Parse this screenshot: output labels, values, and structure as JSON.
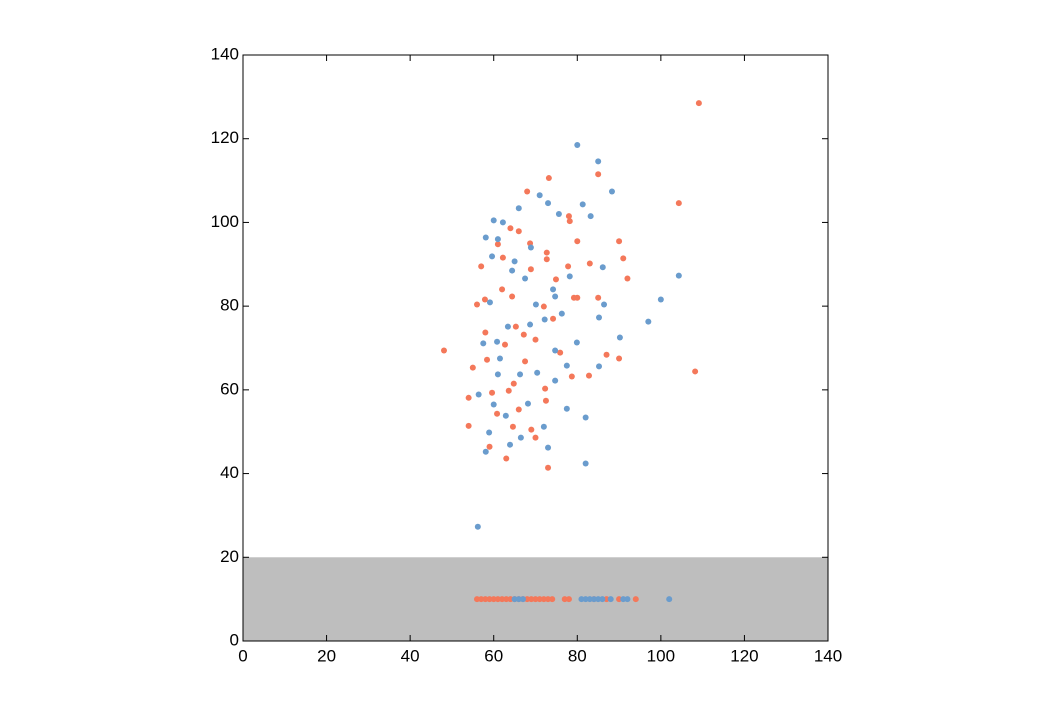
{
  "chart_data": {
    "type": "scatter",
    "xlim": [
      0,
      140
    ],
    "ylim": [
      0,
      140
    ],
    "xticks": [
      0,
      20,
      40,
      60,
      80,
      100,
      120,
      140
    ],
    "yticks": [
      0,
      20,
      40,
      60,
      80,
      100,
      120,
      140
    ],
    "band": [
      0,
      20
    ],
    "band_color": "#bebebe",
    "series": [
      {
        "color": "#f4785a",
        "x": [
          109.1,
          104.3,
          108.2,
          48.1,
          73.2,
          68,
          85,
          78,
          80,
          90,
          91,
          92,
          72.7,
          72.7,
          80,
          85,
          87,
          90,
          72.5,
          73,
          70,
          63,
          59,
          54,
          54,
          55,
          56,
          57,
          58,
          61,
          64,
          66,
          68.7,
          62,
          59.6,
          63.6,
          66,
          72.3,
          75.9,
          78.7,
          82.8,
          69,
          60.8,
          64.8,
          70,
          74.2,
          67.2,
          62.7,
          58.4,
          77.8,
          74.9,
          79.2,
          68.9,
          62.2,
          64.4,
          57.9,
          65.3,
          72,
          67.5,
          64.6,
          83,
          78.2,
          56,
          57,
          58,
          59,
          60,
          61,
          62,
          63,
          64,
          65,
          66,
          67,
          68,
          69,
          70,
          71,
          72,
          73,
          74,
          77,
          78,
          84,
          87,
          90,
          94
        ],
        "values": [
          128.5,
          104.6,
          64.4,
          69.4,
          110.6,
          107.4,
          111.5,
          101.5,
          95.5,
          95.5,
          91.4,
          86.6,
          92.8,
          91.2,
          82,
          82,
          68.4,
          67.5,
          57.4,
          41.4,
          48.6,
          43.6,
          46.4,
          58.1,
          51.4,
          65.3,
          80.4,
          89.5,
          73.7,
          94.8,
          98.6,
          97.9,
          95,
          84,
          59.3,
          59.8,
          55.3,
          60.3,
          68.9,
          63.2,
          63.4,
          50.5,
          54.3,
          61.5,
          72,
          77,
          73.2,
          70.8,
          67.2,
          89.5,
          86.4,
          82,
          88.8,
          91.6,
          82.3,
          81.6,
          75.1,
          79.9,
          66.8,
          51.2,
          90.2,
          100.3,
          10,
          10,
          10,
          10,
          10,
          10,
          10,
          10,
          10,
          10,
          10,
          10,
          10,
          10,
          10,
          10,
          10,
          10,
          10,
          10,
          10,
          10,
          10,
          10,
          10
        ]
      },
      {
        "color": "#6a9ccd",
        "x": [
          80,
          85,
          88.3,
          81.3,
          83.2,
          75.6,
          73,
          71,
          66,
          60,
          62.2,
          58.1,
          61,
          104.3,
          100,
          97,
          86.1,
          86.4,
          85.2,
          90.2,
          85.2,
          82,
          82,
          73,
          56.2,
          58.1,
          58.9,
          56.4,
          57.5,
          60.8,
          59.6,
          64.4,
          67.5,
          74.2,
          74.7,
          78.2,
          70.1,
          72.2,
          68.7,
          63.4,
          61.5,
          61,
          66.3,
          70.4,
          74.7,
          77.5,
          79.9,
          68.2,
          63.9,
          66.5,
          72,
          60,
          62.9,
          74.7,
          65,
          68.9,
          59.1,
          76.3,
          77.5,
          65,
          66,
          67,
          81,
          82,
          83,
          84,
          85,
          86,
          88,
          91,
          92,
          102
        ],
        "values": [
          118.5,
          114.6,
          107.4,
          104.3,
          101.5,
          102,
          104.6,
          106.5,
          103.4,
          100.5,
          100,
          96.4,
          96,
          87.3,
          81.6,
          76.3,
          89.3,
          80.4,
          77.3,
          72.5,
          65.6,
          53.4,
          42.4,
          46.2,
          27.3,
          45.2,
          49.8,
          58.9,
          71.1,
          71.5,
          91.9,
          88.5,
          86.6,
          84,
          82.3,
          87.1,
          80.4,
          76.8,
          75.6,
          75.1,
          67.5,
          63.7,
          63.7,
          64.1,
          62.2,
          65.8,
          71.3,
          56.7,
          46.9,
          48.6,
          51.2,
          56.5,
          53.8,
          69.4,
          90.7,
          94,
          80.9,
          78.2,
          55.5,
          10,
          10,
          10,
          10,
          10,
          10,
          10,
          10,
          10,
          10,
          10,
          10,
          10
        ]
      }
    ]
  }
}
